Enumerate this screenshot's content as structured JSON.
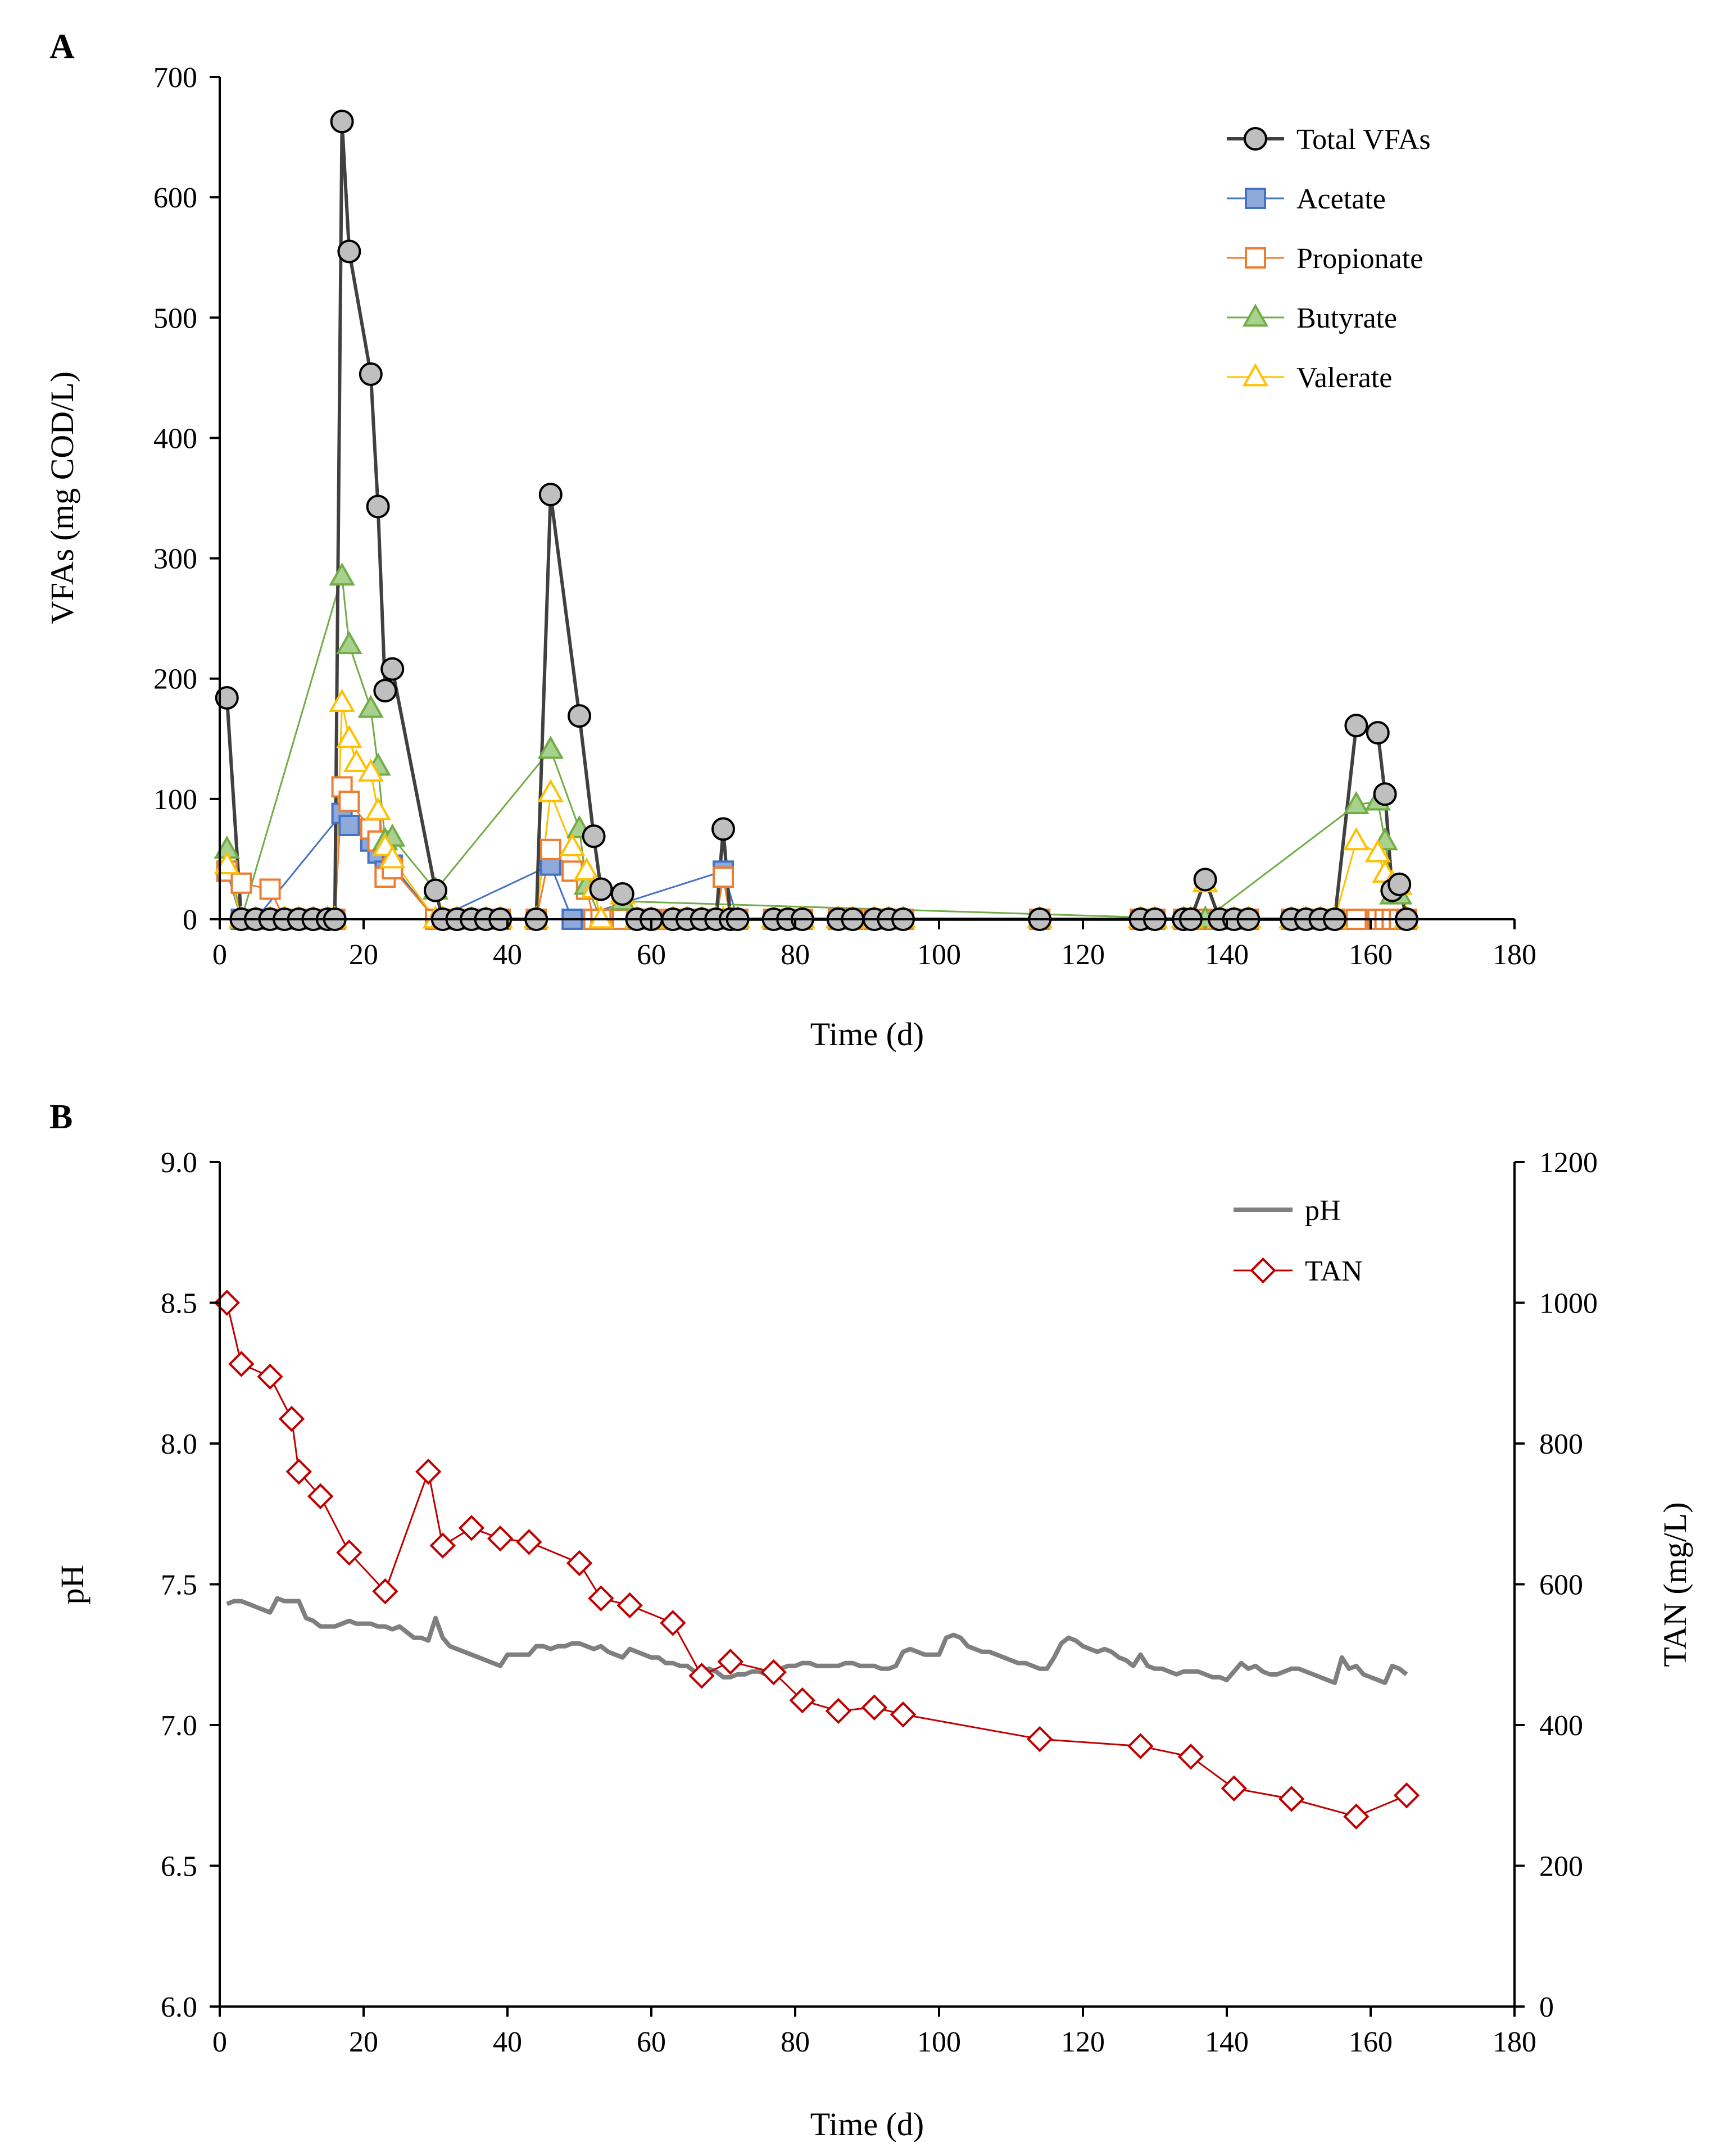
{
  "chart_data": [
    {
      "panel": "A",
      "type": "line",
      "xlabel": "Time (d)",
      "ylabel": "VFAs (mg COD/L)",
      "xlim": [
        0,
        180
      ],
      "ylim": [
        0,
        700
      ],
      "xticks": [
        "0",
        "20",
        "40",
        "60",
        "80",
        "100",
        "120",
        "140",
        "160",
        "180"
      ],
      "yticks": [
        "0",
        "100",
        "200",
        "300",
        "400",
        "500",
        "600",
        "700"
      ],
      "legend_position": "top-right",
      "series": [
        {
          "name": "Total VFAs",
          "marker": "circle",
          "line_color": "#404040",
          "fill": "#bfbfbf",
          "stroke": "#000000",
          "x": [
            1,
            3,
            5,
            7,
            9,
            11,
            13,
            15,
            16,
            17,
            18,
            21,
            22,
            23,
            24,
            30,
            31,
            33,
            35,
            37,
            39,
            44,
            46,
            50,
            52,
            53,
            56,
            58,
            60,
            63,
            65,
            67,
            69,
            70,
            71,
            72,
            77,
            79,
            81,
            86,
            88,
            91,
            93,
            95,
            114,
            128,
            130,
            134,
            135,
            137,
            139,
            141,
            143,
            149,
            151,
            153,
            155,
            158,
            161,
            162,
            163,
            164,
            165
          ],
          "y": [
            184,
            0,
            0,
            0,
            0,
            0,
            0,
            0,
            0,
            663,
            555,
            453,
            343,
            190,
            208,
            24,
            0,
            0,
            0,
            0,
            0,
            0,
            353,
            169,
            69,
            25,
            21,
            0,
            0,
            0,
            0,
            0,
            0,
            75,
            0,
            0,
            0,
            0,
            0,
            0,
            0,
            0,
            0,
            0,
            0,
            0,
            0,
            0,
            0,
            33,
            0,
            0,
            0,
            0,
            0,
            0,
            0,
            161,
            155,
            104,
            24,
            29,
            0
          ]
        },
        {
          "name": "Acetate",
          "marker": "square",
          "line_color": "#4472c4",
          "fill": "#8eaadb",
          "stroke": "#4472c4",
          "x": [
            1,
            3,
            5,
            17,
            18,
            21,
            22,
            23,
            24,
            30,
            46,
            49,
            70,
            72
          ],
          "y": [
            40,
            0,
            0,
            88,
            78,
            65,
            55,
            40,
            45,
            0,
            45,
            0,
            40,
            0
          ]
        },
        {
          "name": "Propionate",
          "marker": "square",
          "line_color": "#ed7d31",
          "fill": "#ffffff",
          "stroke": "#ed7d31",
          "x": [
            1,
            3,
            7,
            9,
            13,
            15,
            16,
            17,
            18,
            21,
            22,
            23,
            24,
            30,
            31,
            33,
            37,
            39,
            44,
            46,
            49,
            51,
            52,
            53,
            56,
            58,
            60,
            63,
            65,
            67,
            69,
            70,
            71,
            72,
            77,
            79,
            81,
            86,
            88,
            91,
            93,
            95,
            114,
            128,
            130,
            134,
            135,
            137,
            139,
            141,
            143,
            149,
            151,
            153,
            155,
            158,
            161,
            162,
            163,
            164,
            165
          ],
          "y": [
            40,
            30,
            25,
            0,
            0,
            0,
            0,
            110,
            98,
            75,
            65,
            35,
            42,
            0,
            0,
            0,
            0,
            0,
            0,
            58,
            40,
            25,
            0,
            0,
            0,
            0,
            0,
            0,
            0,
            0,
            0,
            35,
            0,
            0,
            0,
            0,
            0,
            0,
            0,
            0,
            0,
            0,
            0,
            0,
            0,
            0,
            0,
            0,
            0,
            0,
            0,
            0,
            0,
            0,
            0,
            0,
            0,
            0,
            0,
            0,
            0
          ]
        },
        {
          "name": "Butyrate",
          "marker": "triangle",
          "line_color": "#70ad47",
          "fill": "#a9d18e",
          "stroke": "#70ad47",
          "x": [
            1,
            3,
            17,
            18,
            21,
            22,
            23,
            24,
            30,
            46,
            50,
            51,
            53,
            56,
            137,
            158,
            161,
            162,
            163,
            164
          ],
          "y": [
            58,
            0,
            285,
            228,
            175,
            127,
            65,
            68,
            24,
            141,
            75,
            28,
            0,
            15,
            0,
            95,
            98,
            65,
            20,
            20
          ]
        },
        {
          "name": "Valerate",
          "marker": "triangle",
          "line_color": "#ffc000",
          "fill": "#ffffff",
          "stroke": "#ffc000",
          "x": [
            1,
            3,
            5,
            7,
            9,
            11,
            13,
            15,
            16,
            17,
            18,
            19,
            21,
            22,
            23,
            24,
            30,
            31,
            33,
            35,
            37,
            39,
            44,
            46,
            49,
            51,
            52,
            53,
            56,
            58,
            60,
            63,
            65,
            67,
            69,
            70,
            71,
            72,
            77,
            79,
            81,
            86,
            88,
            91,
            93,
            95,
            114,
            128,
            130,
            134,
            135,
            137,
            139,
            141,
            143,
            149,
            151,
            153,
            155,
            158,
            161,
            162,
            163,
            164,
            165
          ],
          "y": [
            45,
            0,
            0,
            0,
            0,
            0,
            0,
            0,
            0,
            180,
            150,
            130,
            122,
            90,
            60,
            50,
            0,
            0,
            0,
            0,
            0,
            0,
            0,
            105,
            60,
            40,
            25,
            0,
            20,
            0,
            0,
            0,
            0,
            0,
            0,
            0,
            0,
            0,
            0,
            0,
            0,
            0,
            0,
            0,
            0,
            0,
            0,
            0,
            0,
            0,
            0,
            30,
            0,
            0,
            0,
            0,
            0,
            0,
            0,
            65,
            55,
            38,
            30,
            28,
            0
          ]
        }
      ]
    },
    {
      "panel": "B",
      "type": "line",
      "xlabel": "Time (d)",
      "ylabel": "pH",
      "y2label": "TAN (mg/L)",
      "xlim": [
        0,
        180
      ],
      "ylim": [
        6.0,
        9.0
      ],
      "y2lim": [
        0,
        1200
      ],
      "xticks": [
        "0",
        "20",
        "40",
        "60",
        "80",
        "100",
        "120",
        "140",
        "160",
        "180"
      ],
      "yticks": [
        "6.0",
        "6.5",
        "7.0",
        "7.5",
        "8.0",
        "8.5",
        "9.0"
      ],
      "y2ticks": [
        "0",
        "200",
        "400",
        "600",
        "800",
        "1000",
        "1200"
      ],
      "legend_position": "top-right",
      "series": [
        {
          "name": "pH",
          "axis": "left",
          "marker": "none",
          "line_color": "#7f7f7f",
          "x": [
            1,
            2,
            3,
            4,
            5,
            6,
            7,
            8,
            9,
            10,
            11,
            12,
            13,
            14,
            15,
            16,
            17,
            18,
            19,
            20,
            21,
            22,
            23,
            24,
            25,
            26,
            27,
            28,
            29,
            30,
            31,
            32,
            33,
            34,
            35,
            36,
            37,
            38,
            39,
            40,
            41,
            42,
            43,
            44,
            45,
            46,
            47,
            48,
            49,
            50,
            51,
            52,
            53,
            54,
            55,
            56,
            57,
            58,
            59,
            60,
            61,
            62,
            63,
            64,
            65,
            66,
            67,
            68,
            69,
            70,
            71,
            72,
            73,
            74,
            75,
            76,
            77,
            78,
            79,
            80,
            81,
            82,
            83,
            84,
            85,
            86,
            87,
            88,
            89,
            90,
            91,
            92,
            93,
            94,
            95,
            96,
            97,
            98,
            99,
            100,
            101,
            102,
            103,
            104,
            105,
            106,
            107,
            108,
            109,
            110,
            111,
            112,
            113,
            114,
            115,
            116,
            117,
            118,
            119,
            120,
            121,
            122,
            123,
            124,
            125,
            126,
            127,
            128,
            129,
            130,
            131,
            132,
            133,
            134,
            135,
            136,
            137,
            138,
            139,
            140,
            141,
            142,
            143,
            144,
            145,
            146,
            147,
            148,
            149,
            150,
            151,
            152,
            153,
            154,
            155,
            156,
            157,
            158,
            159,
            160,
            161,
            162,
            163,
            164,
            165
          ],
          "y": [
            7.43,
            7.44,
            7.44,
            7.43,
            7.42,
            7.41,
            7.4,
            7.45,
            7.44,
            7.44,
            7.44,
            7.38,
            7.37,
            7.35,
            7.35,
            7.35,
            7.36,
            7.37,
            7.36,
            7.36,
            7.36,
            7.35,
            7.35,
            7.34,
            7.35,
            7.33,
            7.31,
            7.31,
            7.3,
            7.38,
            7.31,
            7.28,
            7.27,
            7.26,
            7.25,
            7.24,
            7.23,
            7.22,
            7.21,
            7.25,
            7.25,
            7.25,
            7.25,
            7.28,
            7.28,
            7.27,
            7.28,
            7.28,
            7.29,
            7.29,
            7.28,
            7.27,
            7.28,
            7.26,
            7.25,
            7.24,
            7.27,
            7.26,
            7.25,
            7.24,
            7.24,
            7.22,
            7.22,
            7.21,
            7.21,
            7.19,
            7.19,
            7.2,
            7.19,
            7.17,
            7.17,
            7.18,
            7.18,
            7.19,
            7.19,
            7.18,
            7.2,
            7.2,
            7.21,
            7.21,
            7.22,
            7.22,
            7.21,
            7.21,
            7.21,
            7.21,
            7.22,
            7.22,
            7.21,
            7.21,
            7.21,
            7.2,
            7.2,
            7.21,
            7.26,
            7.27,
            7.26,
            7.25,
            7.25,
            7.25,
            7.31,
            7.32,
            7.31,
            7.28,
            7.27,
            7.26,
            7.26,
            7.25,
            7.24,
            7.23,
            7.22,
            7.22,
            7.21,
            7.2,
            7.2,
            7.24,
            7.29,
            7.31,
            7.3,
            7.28,
            7.27,
            7.26,
            7.27,
            7.26,
            7.24,
            7.23,
            7.21,
            7.25,
            7.21,
            7.2,
            7.2,
            7.19,
            7.18,
            7.19,
            7.19,
            7.19,
            7.18,
            7.17,
            7.17,
            7.16,
            7.19,
            7.22,
            7.2,
            7.21,
            7.19,
            7.18,
            7.18,
            7.19,
            7.2,
            7.2,
            7.19,
            7.18,
            7.17,
            7.16,
            7.15,
            7.24,
            7.2,
            7.21,
            7.18,
            7.17,
            7.16,
            7.15,
            7.21,
            7.2,
            7.18
          ]
        },
        {
          "name": "TAN",
          "axis": "right",
          "marker": "diamond",
          "line_color": "#c00000",
          "fill": "#ffffff",
          "stroke": "#c00000",
          "x": [
            1,
            3,
            7,
            10,
            11,
            14,
            18,
            23,
            29,
            31,
            35,
            39,
            43,
            50,
            53,
            57,
            63,
            67,
            71,
            77,
            81,
            86,
            91,
            95,
            114,
            128,
            135,
            141,
            149,
            158,
            165
          ],
          "y": [
            1000,
            913,
            895,
            835,
            760,
            725,
            645,
            590,
            760,
            655,
            680,
            665,
            660,
            630,
            580,
            570,
            545,
            470,
            490,
            475,
            435,
            420,
            425,
            415,
            380,
            370,
            355,
            310,
            295,
            270,
            300
          ]
        }
      ]
    }
  ]
}
